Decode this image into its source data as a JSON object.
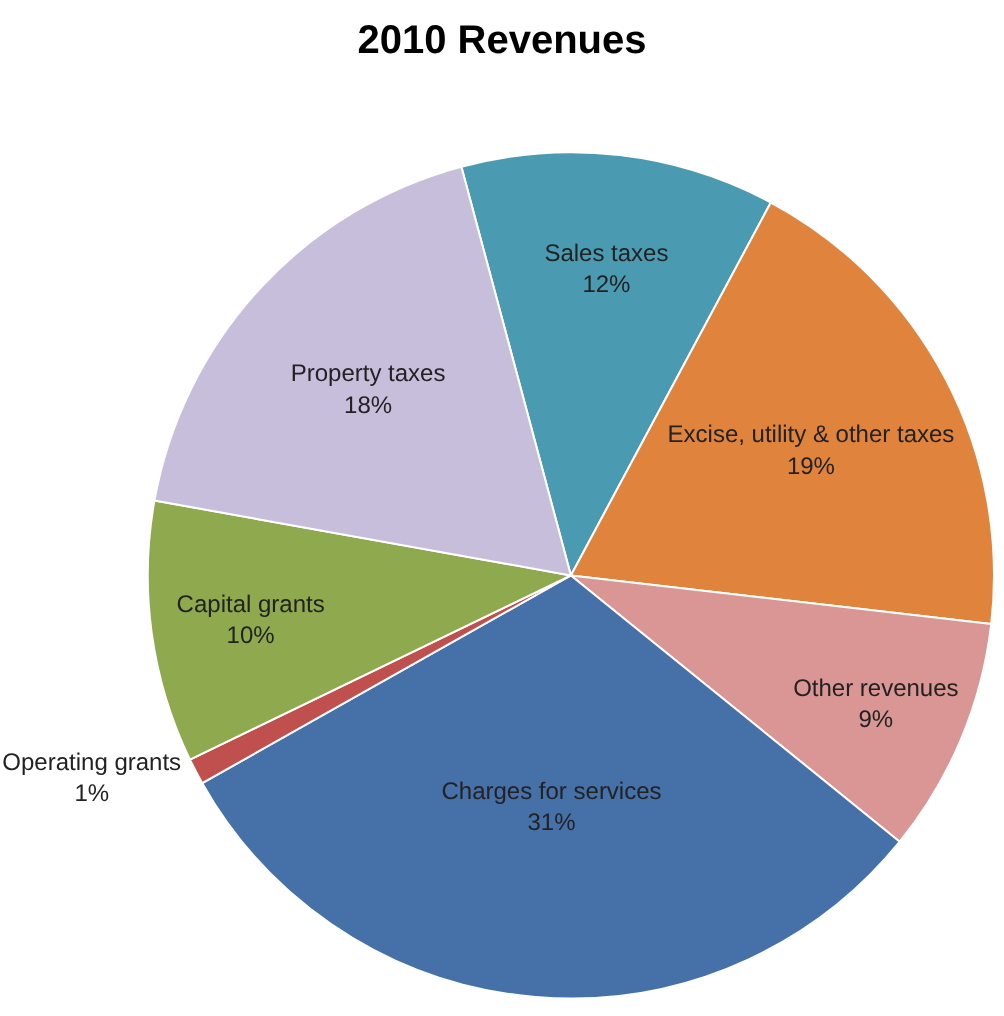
{
  "chart_data": {
    "type": "pie",
    "title": "2010 Revenues",
    "categories": [
      "Sales taxes",
      "Excise, utility & other taxes",
      "Other revenues",
      "Charges for services",
      "Operating grants",
      "Capital grants",
      "Property taxes"
    ],
    "values": [
      12,
      19,
      9,
      31,
      1,
      10,
      18
    ],
    "value_labels": [
      "12%",
      "19%",
      "9%",
      "31%",
      "1%",
      "10%",
      "18%"
    ],
    "colors": [
      "#4a9bb2",
      "#e0843d",
      "#d99694",
      "#4670a8",
      "#c0504d",
      "#8fa94f",
      "#c7bedb"
    ],
    "legend": false
  }
}
